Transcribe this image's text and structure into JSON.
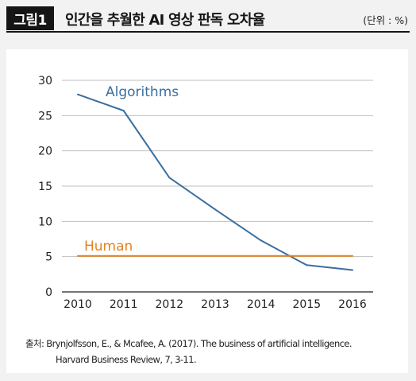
{
  "header": {
    "figure_label": "그림1",
    "title": "인간을 추월한 AI 영상 판독 오차율",
    "unit": "(단위 : %)"
  },
  "source": {
    "line1": "출처: Brynjolfsson, E., & Mcafee, A. (2017). The business of artificial intelligence.",
    "line2": "Harvard Business Review, 7, 3-11."
  },
  "chart_data": {
    "type": "line",
    "x": [
      2010,
      2011,
      2012,
      2013,
      2014,
      2015,
      2016
    ],
    "xlabels": [
      "2010",
      "2011",
      "2012",
      "2013",
      "2014",
      "2015",
      "2016"
    ],
    "yticks": [
      0,
      5,
      10,
      15,
      20,
      25,
      30
    ],
    "ylim": [
      0,
      30
    ],
    "xlim": [
      2010,
      2016
    ],
    "grid": true,
    "title": "",
    "xlabel": "",
    "ylabel": "",
    "series": [
      {
        "name": "Algorithms",
        "color": "#3a6e9f",
        "x": [
          2010,
          2011,
          2012,
          2013,
          2014,
          2015,
          2016
        ],
        "values": [
          28.0,
          25.7,
          16.2,
          11.7,
          7.3,
          3.8,
          3.1
        ]
      },
      {
        "name": "Human",
        "color": "#e5821e",
        "x": [
          2010,
          2016
        ],
        "values": [
          5.1,
          5.1
        ]
      }
    ]
  }
}
